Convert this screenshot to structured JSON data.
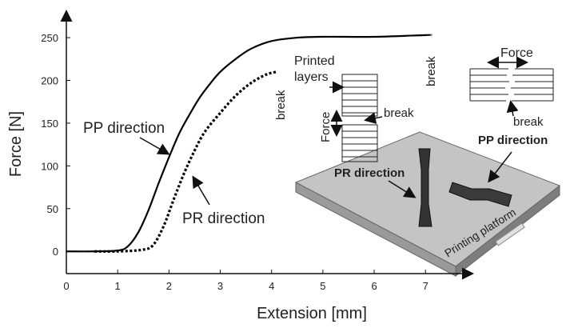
{
  "chart_data": {
    "type": "line",
    "x_label": "Extension [mm]",
    "y_label": "Force [N]",
    "xlim": [
      0,
      7.9
    ],
    "ylim": [
      -26,
      280
    ],
    "xticks": [
      0,
      1,
      2,
      3,
      4,
      5,
      6,
      7
    ],
    "yticks": [
      0,
      50,
      100,
      150,
      200,
      250
    ],
    "series": [
      {
        "name": "PP direction",
        "color": "#000000",
        "dash": false,
        "x": [
          0,
          0.5,
          1.0,
          1.2,
          1.4,
          1.6,
          1.8,
          2.0,
          2.2,
          2.4,
          2.6,
          2.8,
          3.0,
          3.3,
          3.6,
          4.0,
          4.5,
          5.0,
          6.0,
          7.0,
          7.1
        ],
        "values": [
          0,
          0,
          1,
          6,
          22,
          48,
          80,
          110,
          138,
          160,
          180,
          196,
          210,
          225,
          237,
          246,
          250,
          251,
          251,
          253,
          253
        ]
      },
      {
        "name": "PR direction",
        "color": "#000000",
        "dash": true,
        "x": [
          0.55,
          1.0,
          1.5,
          1.7,
          1.9,
          2.1,
          2.3,
          2.5,
          2.7,
          3.0,
          3.3,
          3.6,
          3.9,
          4.1
        ],
        "values": [
          0,
          0,
          2,
          8,
          30,
          62,
          92,
          118,
          140,
          162,
          182,
          197,
          207,
          210
        ]
      }
    ],
    "annotations": [
      "PP direction",
      "PR direction",
      "break",
      "break",
      "Printed",
      "layers",
      "break",
      "Force",
      "Force",
      "break",
      "PP direction",
      "PR direction",
      "Printing platform"
    ]
  }
}
